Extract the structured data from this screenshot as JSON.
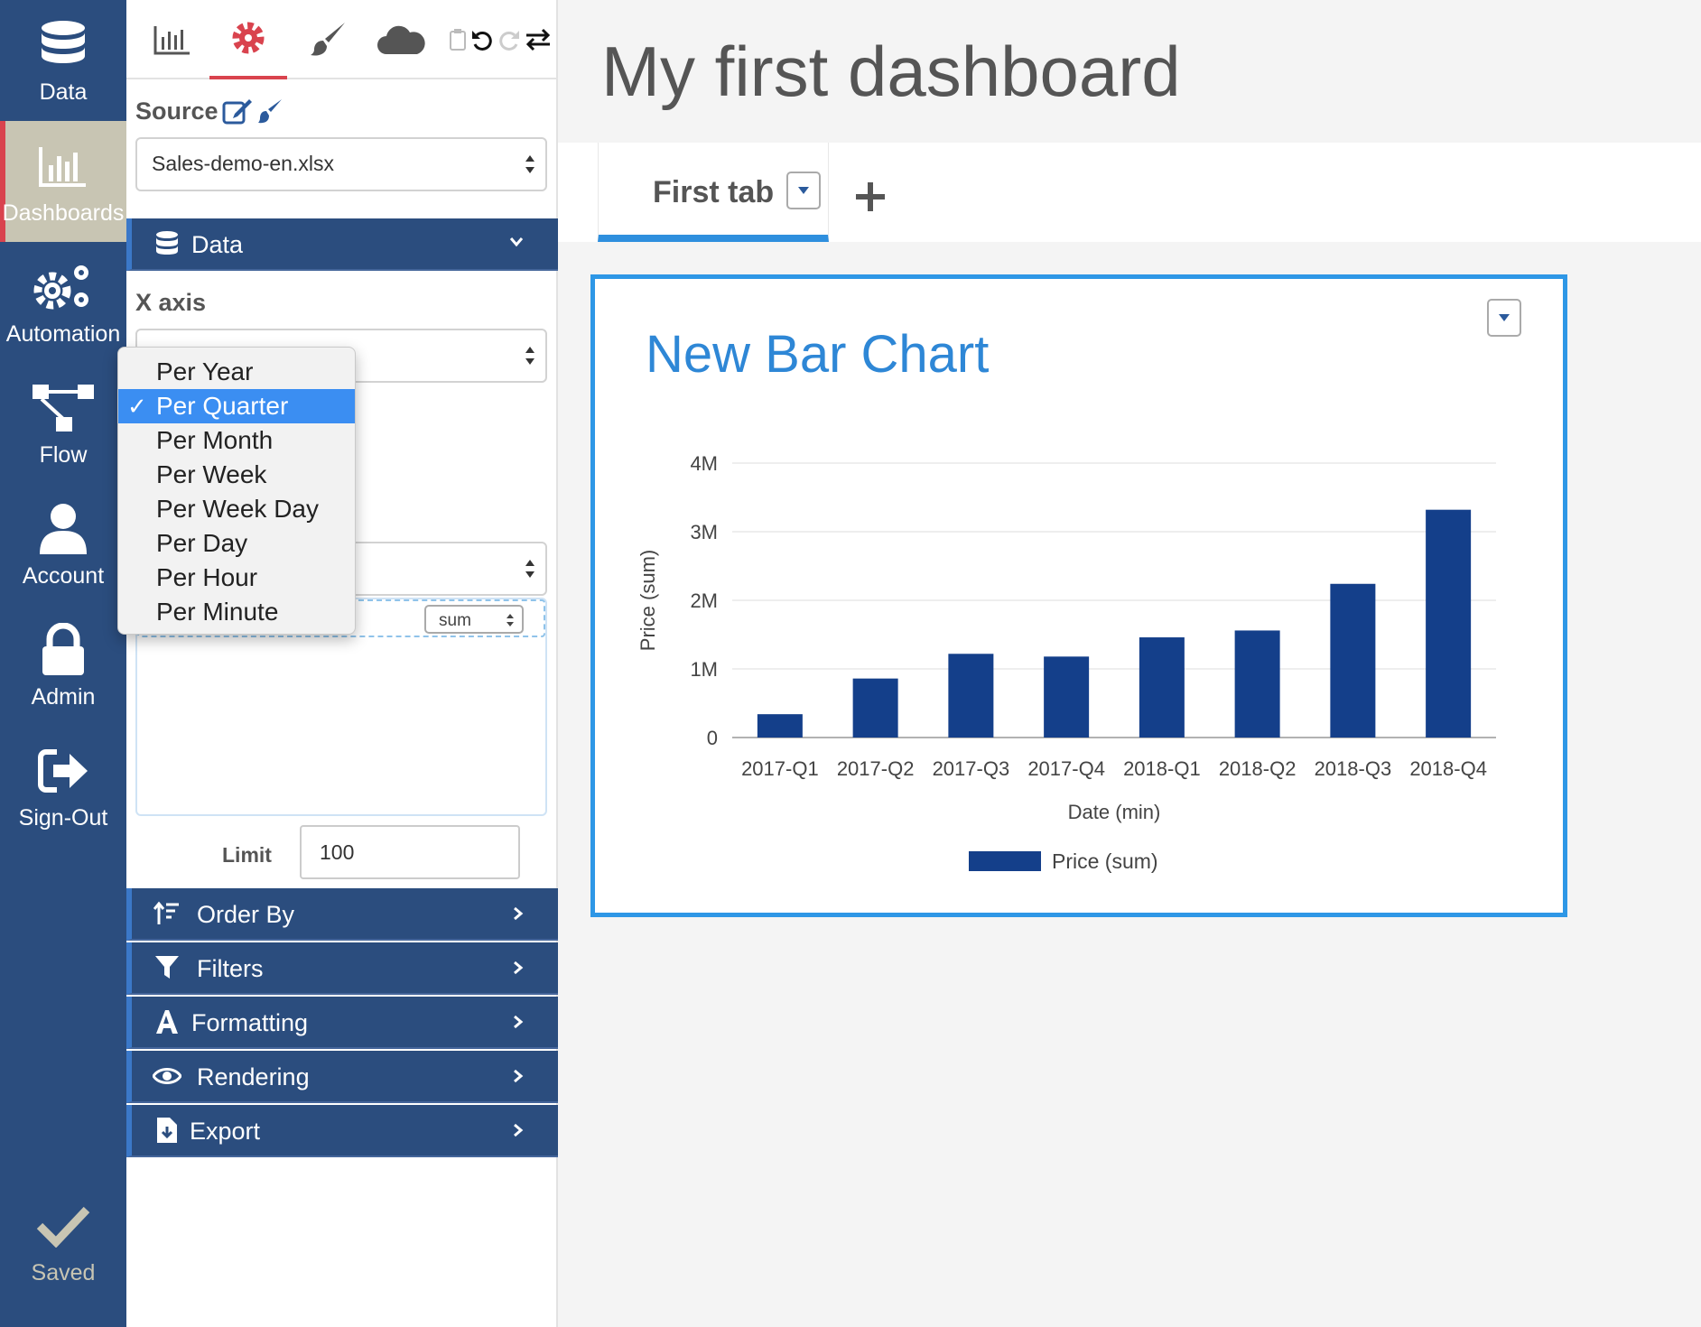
{
  "nav": {
    "items": [
      {
        "label": "Data",
        "icon": "database-icon"
      },
      {
        "label": "Dashboards",
        "icon": "bar-chart-icon"
      },
      {
        "label": "Automation",
        "icon": "gears-icon"
      },
      {
        "label": "Flow",
        "icon": "flow-icon"
      },
      {
        "label": "Account",
        "icon": "user-icon"
      },
      {
        "label": "Admin",
        "icon": "lock-icon"
      },
      {
        "label": "Sign-Out",
        "icon": "sign-out-icon"
      }
    ],
    "active": "Dashboards",
    "saved_label": "Saved"
  },
  "panel": {
    "toolbar": [
      "chart-icon",
      "gear-icon",
      "brush-icon",
      "cloud-icon",
      "clipboard-icon",
      "undo-icon",
      "redo-icon",
      "swap-icon"
    ],
    "source_label": "Source",
    "source_value": "Sales-demo-en.xlsx",
    "data_section": "Data",
    "x_axis_label": "X axis",
    "aggregation": "sum",
    "limit_label": "Limit",
    "limit_value": "100",
    "accordions": [
      {
        "label": "Order By",
        "icon": "sort-icon"
      },
      {
        "label": "Filters",
        "icon": "filter-icon"
      },
      {
        "label": "Formatting",
        "icon": "font-icon"
      },
      {
        "label": "Rendering",
        "icon": "eye-icon"
      },
      {
        "label": "Export",
        "icon": "file-export-icon"
      }
    ]
  },
  "dropdown": {
    "options": [
      "Per Year",
      "Per Quarter",
      "Per Month",
      "Per Week",
      "Per Week Day",
      "Per Day",
      "Per Hour",
      "Per Minute"
    ],
    "selected": "Per Quarter"
  },
  "main": {
    "title": "My first dashboard",
    "tabs": [
      {
        "label": "First tab"
      }
    ],
    "add_tab_icon": "plus-icon"
  },
  "colors": {
    "nav_bg": "#2b4d7e",
    "accent_red": "#d9434e",
    "bar": "#143f8a",
    "card_border": "#2e97e6",
    "title_blue": "#2e87d6"
  },
  "chart_data": {
    "type": "bar",
    "title": "New Bar Chart",
    "categories": [
      "2017-Q1",
      "2017-Q2",
      "2017-Q3",
      "2017-Q4",
      "2018-Q1",
      "2018-Q2",
      "2018-Q3",
      "2018-Q4"
    ],
    "series": [
      {
        "name": "Price (sum)",
        "values": [
          0.34,
          0.86,
          1.22,
          1.18,
          1.46,
          1.56,
          2.24,
          3.32
        ]
      }
    ],
    "xlabel": "Date (min)",
    "ylabel": "Price (sum)",
    "ylim": [
      0,
      4
    ],
    "yticks": [
      "0",
      "1M",
      "2M",
      "3M",
      "4M"
    ],
    "grid": true,
    "legend": "bottom"
  }
}
